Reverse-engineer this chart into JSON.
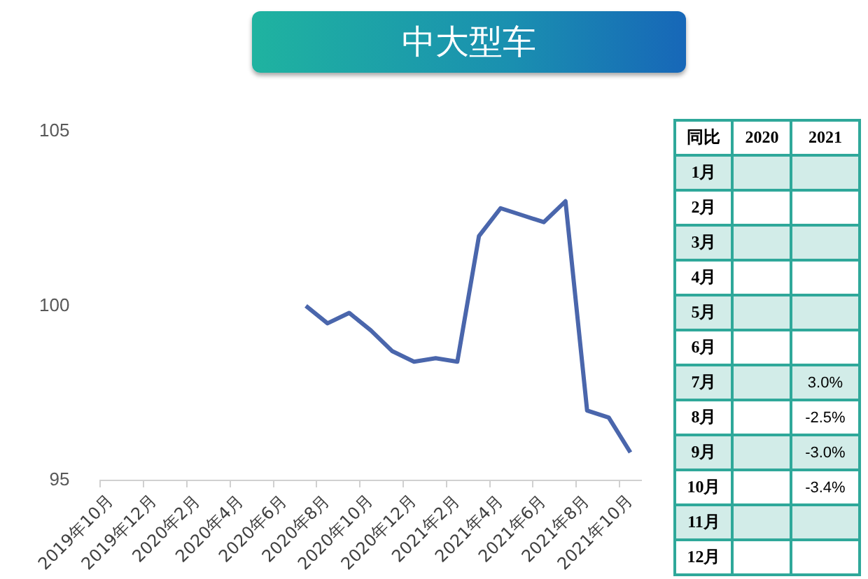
{
  "chart_data": [
    {
      "type": "line",
      "title": "中大型车",
      "categories": [
        "2019年10月",
        null,
        "2019年12月",
        null,
        "2020年2月",
        null,
        "2020年4月",
        null,
        "2020年6月",
        null,
        "2020年8月",
        null,
        "2020年10月",
        null,
        "2020年12月",
        null,
        "2021年2月",
        null,
        "2021年4月",
        null,
        "2021年6月",
        null,
        "2021年8月",
        null,
        "2021年10月"
      ],
      "series": [
        {
          "color": "#4a66ac",
          "values": [
            null,
            null,
            null,
            null,
            null,
            null,
            null,
            null,
            null,
            100.0,
            99.5,
            99.8,
            99.3,
            98.7,
            98.4,
            98.5,
            98.4,
            102.0,
            102.8,
            102.6,
            102.4,
            103.0,
            97.0,
            96.8,
            95.8
          ]
        }
      ],
      "ylim": [
        95,
        105
      ],
      "yticks": [
        95,
        100,
        105
      ],
      "grid": false
    },
    {
      "type": "heatmap",
      "title": "同比",
      "categories": [
        "2020",
        "2021"
      ],
      "y_categories": [
        "1月",
        "2月",
        "3月",
        "4月",
        "5月",
        "6月",
        "7月",
        "8月",
        "9月",
        "10月",
        "11月",
        "12月"
      ],
      "cells": [
        [
          null,
          null
        ],
        [
          null,
          null
        ],
        [
          null,
          null
        ],
        [
          null,
          null
        ],
        [
          null,
          null
        ],
        [
          null,
          null
        ],
        [
          null,
          3.0
        ],
        [
          null,
          -2.5
        ],
        [
          null,
          -3.0
        ],
        [
          null,
          -3.4
        ],
        [
          null,
          null
        ],
        [
          null,
          null
        ]
      ],
      "cell_labels": [
        [
          null,
          null
        ],
        [
          null,
          null
        ],
        [
          null,
          null
        ],
        [
          null,
          null
        ],
        [
          null,
          null
        ],
        [
          null,
          null
        ],
        [
          null,
          "3.0%"
        ],
        [
          null,
          "-2.5%"
        ],
        [
          null,
          "-3.0%"
        ],
        [
          null,
          "-3.4%"
        ],
        [
          null,
          null
        ],
        [
          null,
          null
        ]
      ]
    }
  ]
}
